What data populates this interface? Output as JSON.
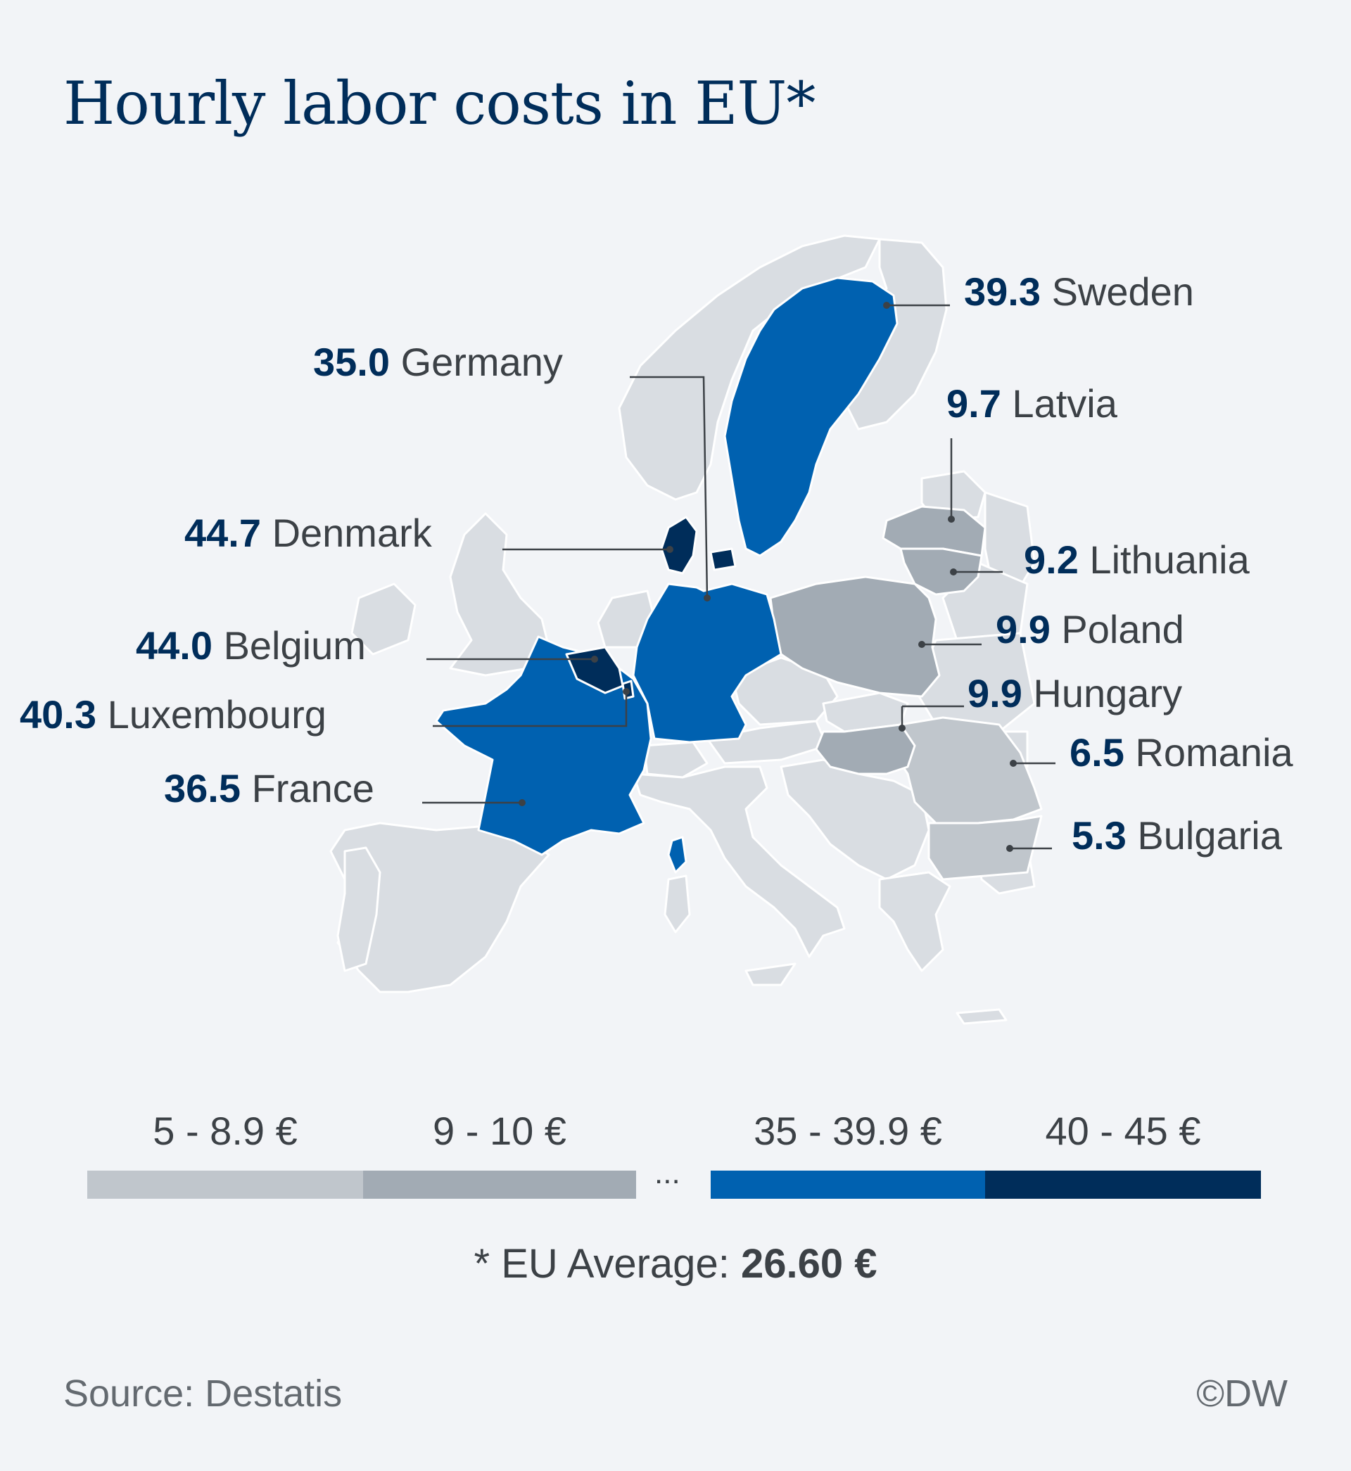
{
  "title": "Hourly labor costs in EU*",
  "colors": {
    "background": "#f2f4f7",
    "neutral_country": "#d9dde2",
    "border": "#ffffff",
    "tier_5_8_9": "#c0c6cc",
    "tier_9_10": "#a2abb4",
    "tier_35_39_9": "#0061b0",
    "tier_40_45": "#002d5a",
    "leader_line": "#3c4146"
  },
  "countries": [
    {
      "id": "sweden",
      "value": "39.3",
      "name": "Sweden",
      "tier": "tier_35_39_9"
    },
    {
      "id": "germany",
      "value": "35.0",
      "name": "Germany",
      "tier": "tier_35_39_9"
    },
    {
      "id": "latvia",
      "value": "9.7",
      "name": "Latvia",
      "tier": "tier_9_10"
    },
    {
      "id": "denmark",
      "value": "44.7",
      "name": "Denmark",
      "tier": "tier_40_45"
    },
    {
      "id": "lithuania",
      "value": "9.2",
      "name": "Lithuania",
      "tier": "tier_9_10"
    },
    {
      "id": "poland",
      "value": "9.9",
      "name": "Poland",
      "tier": "tier_9_10"
    },
    {
      "id": "belgium",
      "value": "44.0",
      "name": "Belgium",
      "tier": "tier_40_45"
    },
    {
      "id": "hungary",
      "value": "9.9",
      "name": "Hungary",
      "tier": "tier_9_10"
    },
    {
      "id": "luxembourg",
      "value": "40.3",
      "name": "Luxembourg",
      "tier": "tier_40_45"
    },
    {
      "id": "romania",
      "value": "6.5",
      "name": "Romania",
      "tier": "tier_5_8_9"
    },
    {
      "id": "france",
      "value": "36.5",
      "name": "France",
      "tier": "tier_35_39_9"
    },
    {
      "id": "bulgaria",
      "value": "5.3",
      "name": "Bulgaria",
      "tier": "tier_5_8_9"
    }
  ],
  "legend": {
    "items": [
      {
        "label": "5 - 8.9 €",
        "color": "#c0c6cc"
      },
      {
        "label": "9 - 10 €",
        "color": "#a2abb4"
      },
      {
        "label": "35 - 39.9 €",
        "color": "#0061b0"
      },
      {
        "label": "40 - 45 €",
        "color": "#002d5a"
      }
    ],
    "gap_marker": "..."
  },
  "footnote": {
    "prefix": "* EU Average: ",
    "value": "26.60 €"
  },
  "source": "Source: Destatis",
  "copyright": "©DW"
}
